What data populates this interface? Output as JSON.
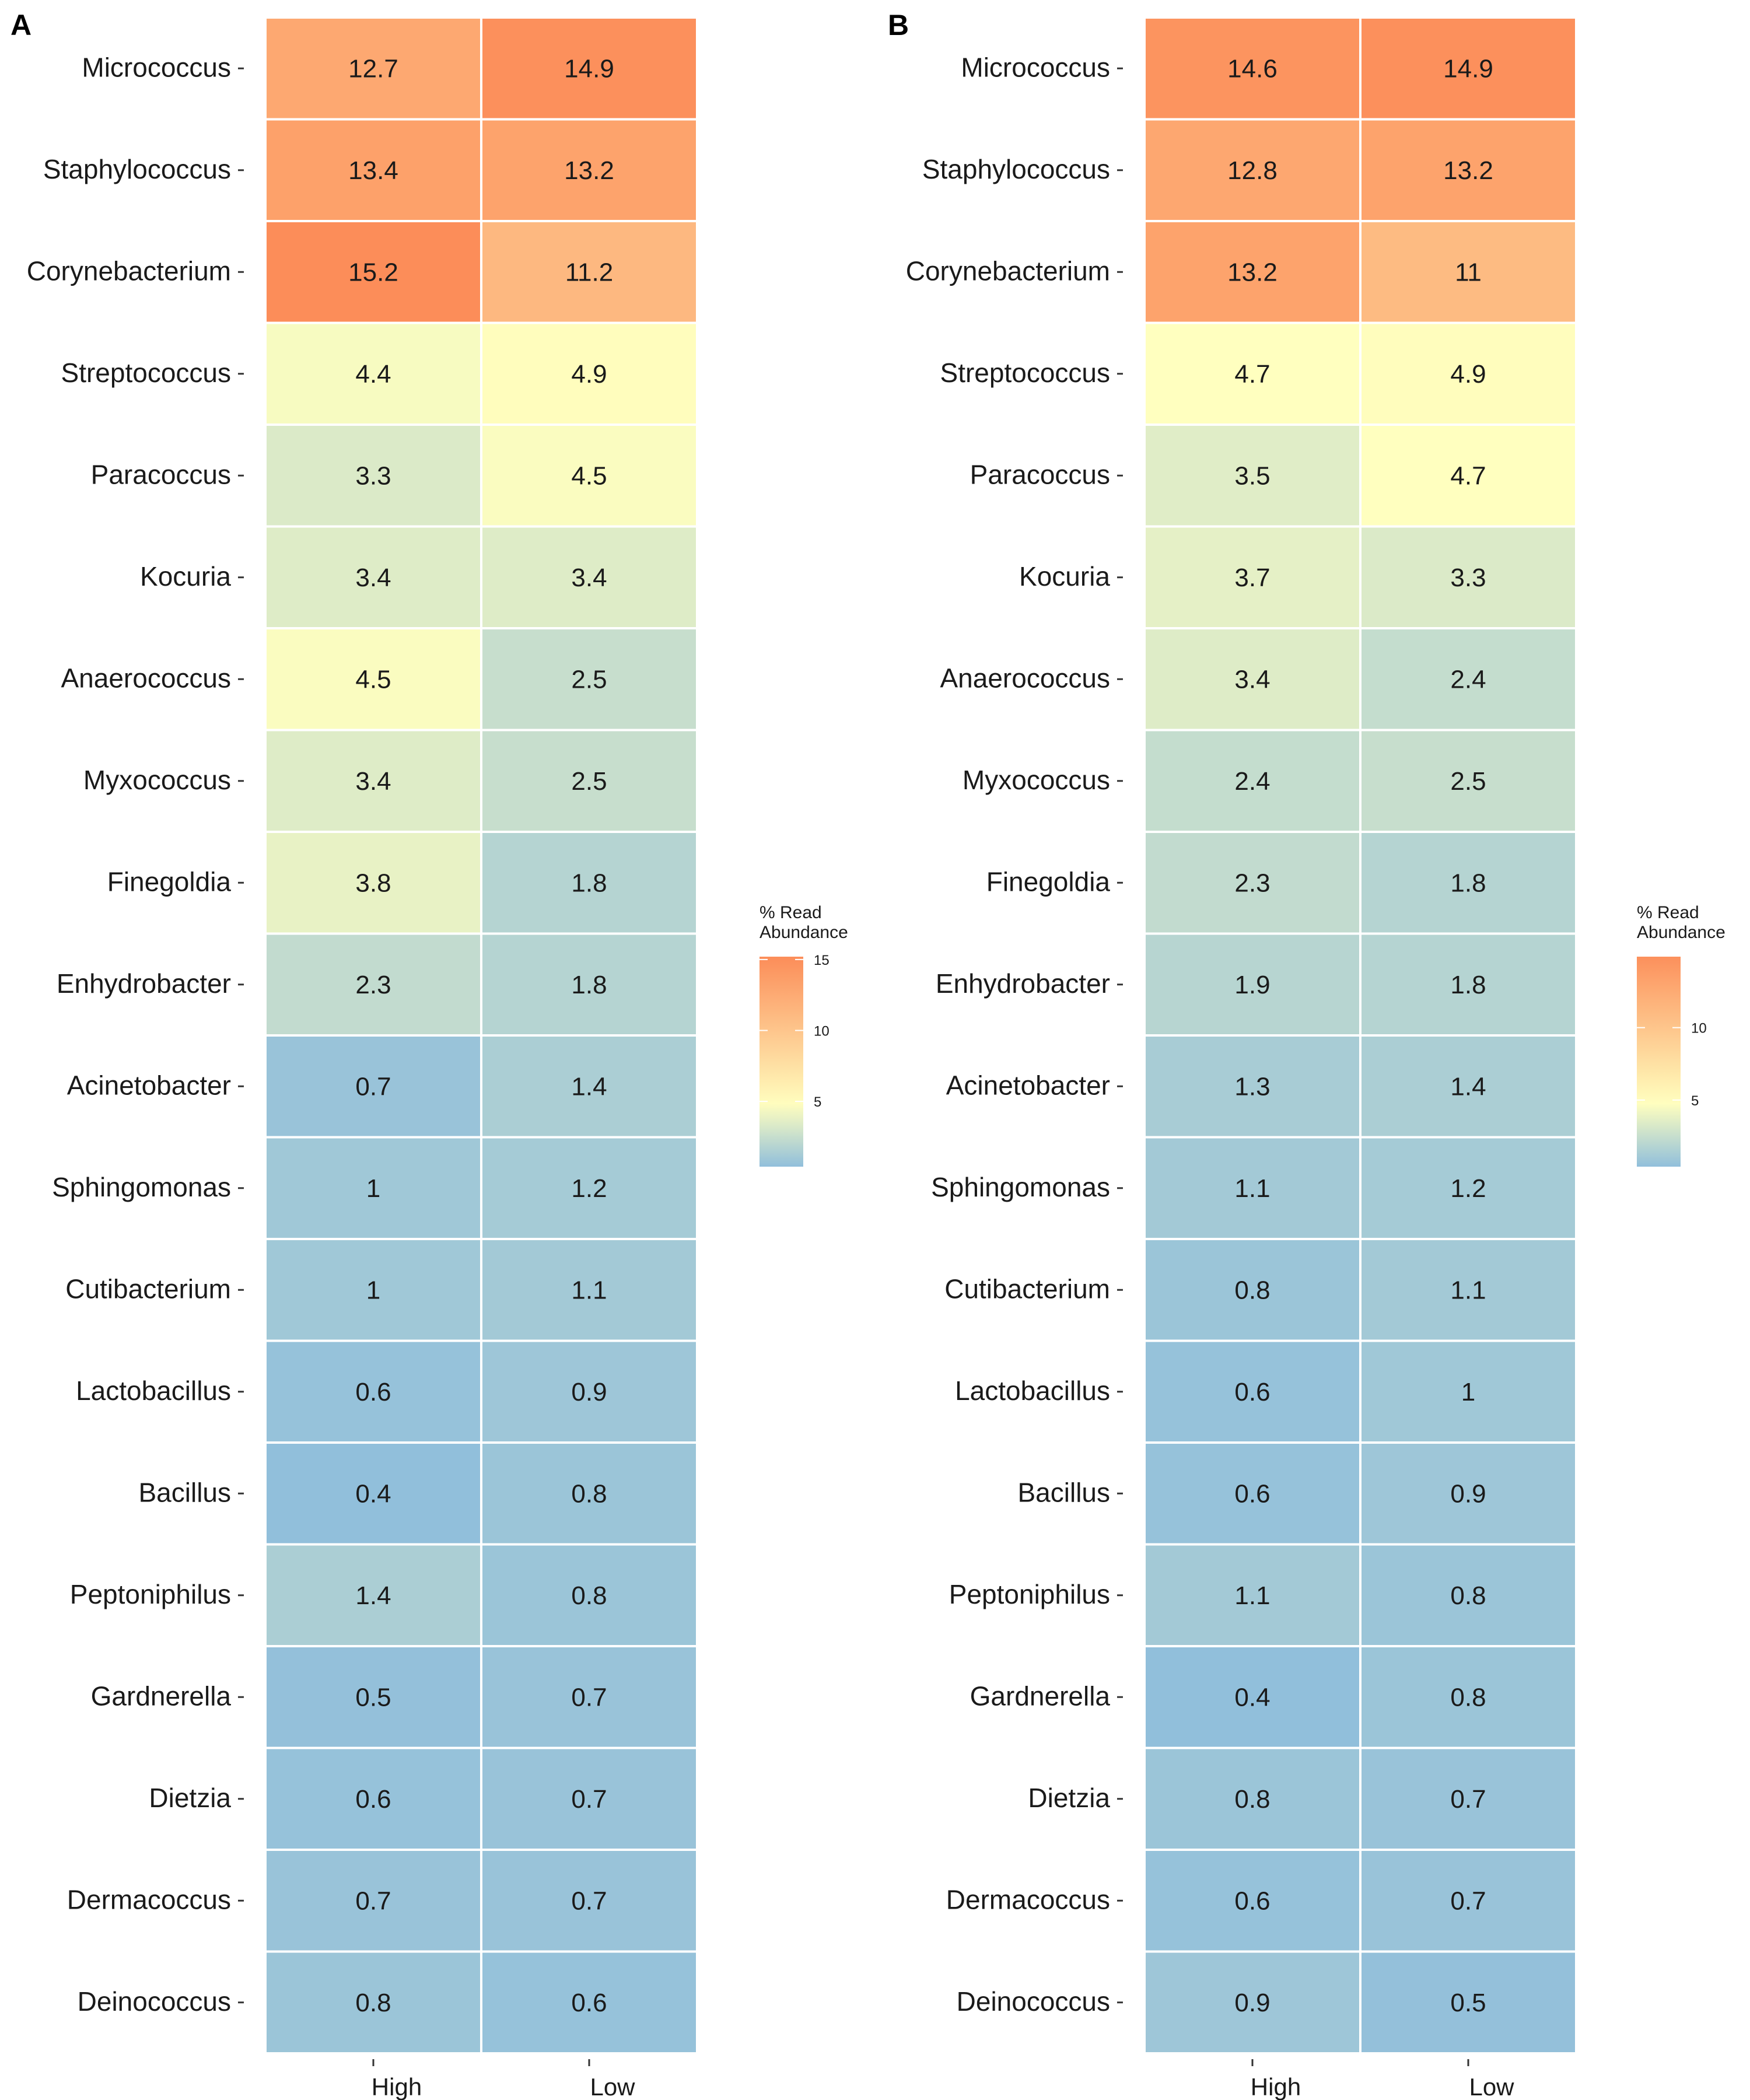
{
  "color_scale": {
    "low_color": "#91bfdb",
    "mid_color": "#ffffbf",
    "high_color": "#fc8d59",
    "min": 0.4,
    "mid": 4.7,
    "max": 15.2
  },
  "chart_data": [
    {
      "type": "heatmap",
      "panel": "A",
      "x_categories": [
        "High",
        "Low"
      ],
      "y_categories": [
        "Micrococcus",
        "Staphylococcus",
        "Corynebacterium",
        "Streptococcus",
        "Paracoccus",
        "Kocuria",
        "Anaerococcus",
        "Myxococcus",
        "Finegoldia",
        "Enhydrobacter",
        "Acinetobacter",
        "Sphingomonas",
        "Cutibacterium",
        "Lactobacillus",
        "Bacillus",
        "Peptoniphilus",
        "Gardnerella",
        "Dietzia",
        "Dermacoccus",
        "Deinococcus"
      ],
      "values": [
        [
          12.7,
          14.9
        ],
        [
          13.4,
          13.2
        ],
        [
          15.2,
          11.2
        ],
        [
          4.4,
          4.9
        ],
        [
          3.3,
          4.5
        ],
        [
          3.4,
          3.4
        ],
        [
          4.5,
          2.5
        ],
        [
          3.4,
          2.5
        ],
        [
          3.8,
          1.8
        ],
        [
          2.3,
          1.8
        ],
        [
          0.7,
          1.4
        ],
        [
          1,
          1.2
        ],
        [
          1,
          1.1
        ],
        [
          0.6,
          0.9
        ],
        [
          0.4,
          0.8
        ],
        [
          1.4,
          0.8
        ],
        [
          0.5,
          0.7
        ],
        [
          0.6,
          0.7
        ],
        [
          0.7,
          0.7
        ],
        [
          0.8,
          0.6
        ]
      ],
      "legend": {
        "title_lines": [
          "% Read",
          "Abundance"
        ],
        "ticks": [
          5,
          10,
          15
        ],
        "range": [
          0.4,
          15.2
        ]
      }
    },
    {
      "type": "heatmap",
      "panel": "B",
      "x_categories": [
        "High",
        "Low"
      ],
      "y_categories": [
        "Micrococcus",
        "Staphylococcus",
        "Corynebacterium",
        "Streptococcus",
        "Paracoccus",
        "Kocuria",
        "Anaerococcus",
        "Myxococcus",
        "Finegoldia",
        "Enhydrobacter",
        "Acinetobacter",
        "Sphingomonas",
        "Cutibacterium",
        "Lactobacillus",
        "Bacillus",
        "Peptoniphilus",
        "Gardnerella",
        "Dietzia",
        "Dermacoccus",
        "Deinococcus"
      ],
      "values": [
        [
          14.6,
          14.9
        ],
        [
          12.8,
          13.2
        ],
        [
          13.2,
          11
        ],
        [
          4.7,
          4.9
        ],
        [
          3.5,
          4.7
        ],
        [
          3.7,
          3.3
        ],
        [
          3.4,
          2.4
        ],
        [
          2.4,
          2.5
        ],
        [
          2.3,
          1.8
        ],
        [
          1.9,
          1.8
        ],
        [
          1.3,
          1.4
        ],
        [
          1.1,
          1.2
        ],
        [
          0.8,
          1.1
        ],
        [
          0.6,
          1
        ],
        [
          0.6,
          0.9
        ],
        [
          1.1,
          0.8
        ],
        [
          0.4,
          0.8
        ],
        [
          0.8,
          0.7
        ],
        [
          0.6,
          0.7
        ],
        [
          0.9,
          0.5
        ]
      ],
      "legend": {
        "title_lines": [
          "% Read",
          "Abundance"
        ],
        "ticks": [
          5,
          10
        ],
        "range": [
          0.4,
          14.9
        ]
      }
    }
  ]
}
